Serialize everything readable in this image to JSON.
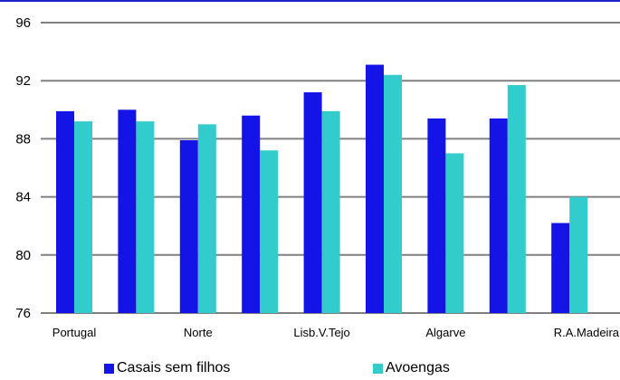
{
  "chart_data": {
    "type": "bar",
    "categories": [
      "Portugal",
      "",
      "Norte",
      "",
      "Lisb.V.Tejo",
      "",
      "Algarve",
      "",
      "R.A.Madeira"
    ],
    "series": [
      {
        "name": "Casais sem filhos",
        "color": "#1414e6",
        "values": [
          89.9,
          90.0,
          87.9,
          89.6,
          91.2,
          93.1,
          89.4,
          89.4,
          82.2
        ]
      },
      {
        "name": "Avoengas",
        "color": "#33cccc",
        "values": [
          89.2,
          89.2,
          89.0,
          87.2,
          89.9,
          92.4,
          87.0,
          91.7,
          84.0
        ]
      }
    ],
    "yticks": [
      "76",
      "80",
      "84",
      "88",
      "92",
      "96"
    ],
    "ylim": [
      76,
      96
    ],
    "grid": true,
    "legend_position": "bottom",
    "gridline_color": "#808080"
  }
}
